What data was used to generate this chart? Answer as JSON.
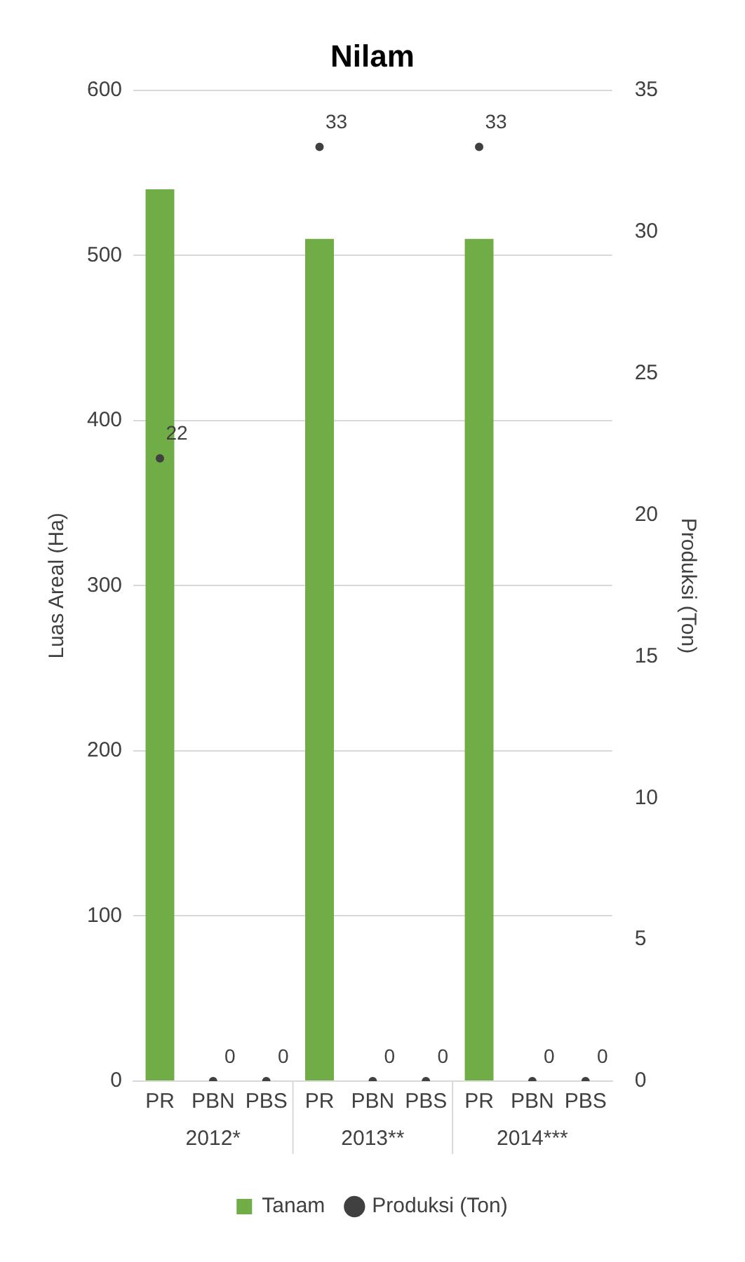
{
  "chart_data": {
    "type": "bar",
    "title": "Nilam",
    "categories": [
      "PR",
      "PBN",
      "PBS",
      "PR",
      "PBN",
      "PBS",
      "PR",
      "PBN",
      "PBS"
    ],
    "annotations": [
      "2012*",
      "2013**",
      "2014***"
    ],
    "series": [
      {
        "name": "Tanam",
        "color": "#70ad47",
        "values": [
          540,
          0,
          0,
          510,
          0,
          0,
          510,
          0,
          0
        ]
      },
      {
        "name": "Produksi (Ton)",
        "type": "scatter",
        "axis": "y2",
        "color": "#404040",
        "marker": "circle",
        "values": [
          22,
          0,
          0,
          33,
          0,
          0,
          33,
          0,
          0
        ],
        "value_labels": [
          "22",
          "0",
          "0",
          "33",
          "0",
          "0",
          "33",
          "0",
          "0"
        ]
      }
    ],
    "ylabel": "Luas Areal (Ha)",
    "y2label": "Produksi (Ton)",
    "ylim": [
      0,
      600
    ],
    "yticks": [
      0,
      100,
      200,
      300,
      400,
      500,
      600
    ],
    "y2lim": [
      0,
      35
    ],
    "y2ticks": [
      0,
      5,
      10,
      15,
      20,
      25,
      30,
      35
    ],
    "grid": "y",
    "legend": "bottom"
  }
}
